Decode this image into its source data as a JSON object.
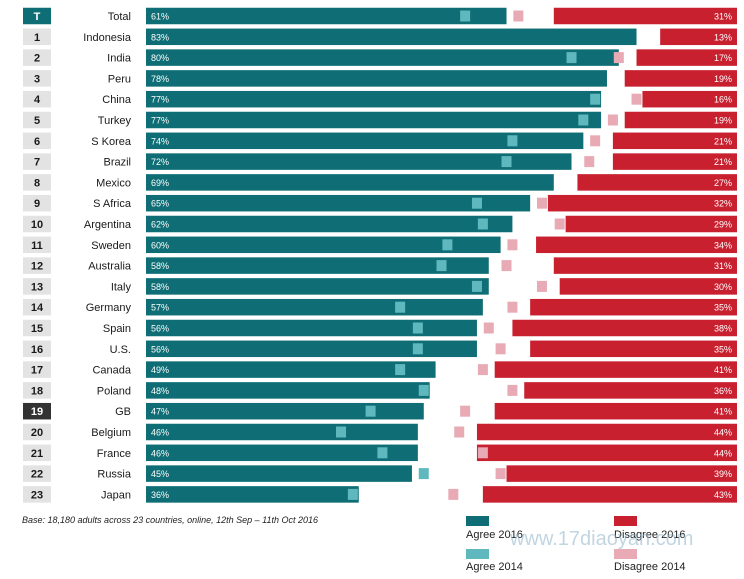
{
  "chart_data": {
    "type": "bar",
    "title": "",
    "xlabel": "",
    "ylabel": "",
    "xlim": [
      0,
      100
    ],
    "categories": [
      "Total",
      "Indonesia",
      "India",
      "Peru",
      "China",
      "Turkey",
      "S Korea",
      "Brazil",
      "Mexico",
      "S Africa",
      "Argentina",
      "Sweden",
      "Australia",
      "Italy",
      "Germany",
      "Spain",
      "U.S.",
      "Canada",
      "Poland",
      "GB",
      "Belgium",
      "France",
      "Russia",
      "Japan"
    ],
    "ranks": [
      "T",
      "1",
      "2",
      "3",
      "4",
      "5",
      "6",
      "7",
      "8",
      "9",
      "10",
      "11",
      "12",
      "13",
      "14",
      "15",
      "16",
      "17",
      "18",
      "19",
      "20",
      "21",
      "22",
      "23"
    ],
    "highlight_rank": "19",
    "series": [
      {
        "name": "Agree 2016",
        "values": [
          61,
          83,
          80,
          78,
          77,
          77,
          74,
          72,
          69,
          65,
          62,
          60,
          58,
          58,
          57,
          56,
          56,
          49,
          48,
          47,
          46,
          46,
          45,
          36
        ],
        "labels": [
          "61%",
          "83%",
          "80%",
          "78%",
          "77%",
          "77%",
          "74%",
          "72%",
          "69%",
          "65%",
          "62%",
          "60%",
          "58%",
          "58%",
          "57%",
          "56%",
          "56%",
          "49%",
          "48%",
          "47%",
          "46%",
          "46%",
          "45%",
          "36%"
        ]
      },
      {
        "name": "Disagree 2016",
        "values": [
          31,
          13,
          17,
          19,
          16,
          19,
          21,
          21,
          27,
          32,
          29,
          34,
          31,
          30,
          35,
          38,
          35,
          41,
          36,
          41,
          44,
          44,
          39,
          43
        ],
        "labels": [
          "31%",
          "13%",
          "17%",
          "19%",
          "16%",
          "19%",
          "21%",
          "21%",
          "27%",
          "32%",
          "29%",
          "34%",
          "31%",
          "30%",
          "35%",
          "38%",
          "35%",
          "41%",
          "36%",
          "41%",
          "44%",
          "44%",
          "39%",
          "43%"
        ]
      },
      {
        "name": "Agree 2014",
        "values": [
          54,
          null,
          72,
          null,
          76,
          74,
          62,
          61,
          null,
          56,
          57,
          51,
          50,
          56,
          43,
          46,
          46,
          43,
          47,
          38,
          33,
          40,
          47,
          35
        ]
      },
      {
        "name": "Disagree 2014",
        "values": [
          37,
          null,
          20,
          null,
          17,
          21,
          24,
          25,
          null,
          33,
          30,
          38,
          39,
          33,
          38,
          42,
          40,
          43,
          38,
          46,
          47,
          43,
          40,
          48
        ]
      }
    ]
  },
  "footnote": "Base: 18,180 adults across 23 countries, online, 12th Sep – 11th Oct 2016",
  "legend": {
    "agree_2016": "Agree 2016",
    "agree_2014": "Agree 2014",
    "disagree_2016": "Disagree 2016",
    "disagree_2014": "Disagree 2014"
  },
  "watermark": "www.17diaoyan.com",
  "colors": {
    "agree_2016": "#0f6e75",
    "agree_2014": "#5fb8bd",
    "disagree_2016": "#c8202f",
    "disagree_2014": "#e8aab4",
    "rank_bg": "#e3e3e3",
    "rank_total_bg": "#0f6e75",
    "rank_highlight_bg": "#333333"
  }
}
